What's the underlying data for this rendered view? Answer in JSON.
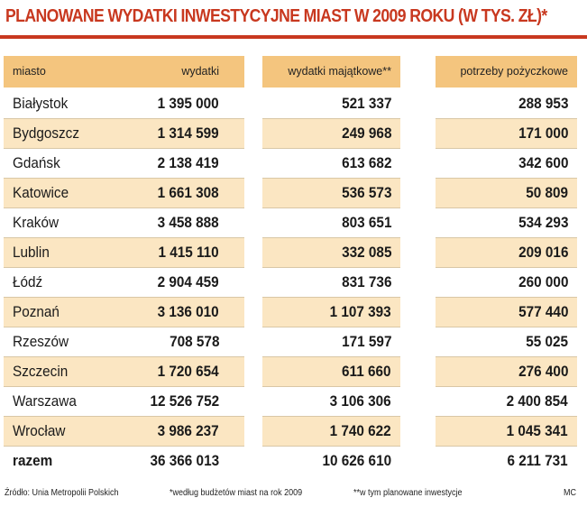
{
  "title": "PLANOWANE WYDATKI INWESTYCYJNE MIAST W 2009 ROKU (W TYS. ZŁ)*",
  "colors": {
    "accent": "#c8381f",
    "header_bg": "#f4c57e",
    "band_bg": "#fbe6c2"
  },
  "chart_data": {
    "type": "table",
    "title": "PLANOWANE WYDATKI INWESTYCYJNE MIAST W 2009 ROKU (W TYS. ZŁ)*",
    "columns": [
      "miasto",
      "wydatki",
      "wydatki majątkowe**",
      "potrzeby pożyczkowe"
    ],
    "rows": [
      {
        "city": "Białystok",
        "wydatki": "1 395 000",
        "majatkowe": "521 337",
        "pozyczkowe": "288 953"
      },
      {
        "city": "Bydgoszcz",
        "wydatki": "1 314 599",
        "majatkowe": "249 968",
        "pozyczkowe": "171 000"
      },
      {
        "city": "Gdańsk",
        "wydatki": "2 138 419",
        "majatkowe": "613 682",
        "pozyczkowe": "342 600"
      },
      {
        "city": "Katowice",
        "wydatki": "1 661 308",
        "majatkowe": "536 573",
        "pozyczkowe": "50 809"
      },
      {
        "city": "Kraków",
        "wydatki": "3 458 888",
        "majatkowe": "803 651",
        "pozyczkowe": "534 293"
      },
      {
        "city": "Lublin",
        "wydatki": "1 415 110",
        "majatkowe": "332 085",
        "pozyczkowe": "209 016"
      },
      {
        "city": "Łódź",
        "wydatki": "2 904 459",
        "majatkowe": "831 736",
        "pozyczkowe": "260 000"
      },
      {
        "city": "Poznań",
        "wydatki": "3 136 010",
        "majatkowe": "1 107 393",
        "pozyczkowe": "577 440"
      },
      {
        "city": "Rzeszów",
        "wydatki": "708 578",
        "majatkowe": "171 597",
        "pozyczkowe": "55 025"
      },
      {
        "city": "Szczecin",
        "wydatki": "1 720 654",
        "majatkowe": "611 660",
        "pozyczkowe": "276 400"
      },
      {
        "city": "Warszawa",
        "wydatki": "12 526 752",
        "majatkowe": "3 106 306",
        "pozyczkowe": "2 400 854"
      },
      {
        "city": "Wrocław",
        "wydatki": "3 986 237",
        "majatkowe": "1 740 622",
        "pozyczkowe": "1 045 341"
      }
    ],
    "total": {
      "city": "razem",
      "wydatki": "36 366 013",
      "majatkowe": "10 626 610",
      "pozyczkowe": "6 211 731"
    }
  },
  "footer": {
    "source": "Źródło: Unia Metropolii Polskich",
    "note1": "*według budżetów miast na rok 2009",
    "note2": "**w tym planowane inwestycje",
    "author": "MC"
  }
}
